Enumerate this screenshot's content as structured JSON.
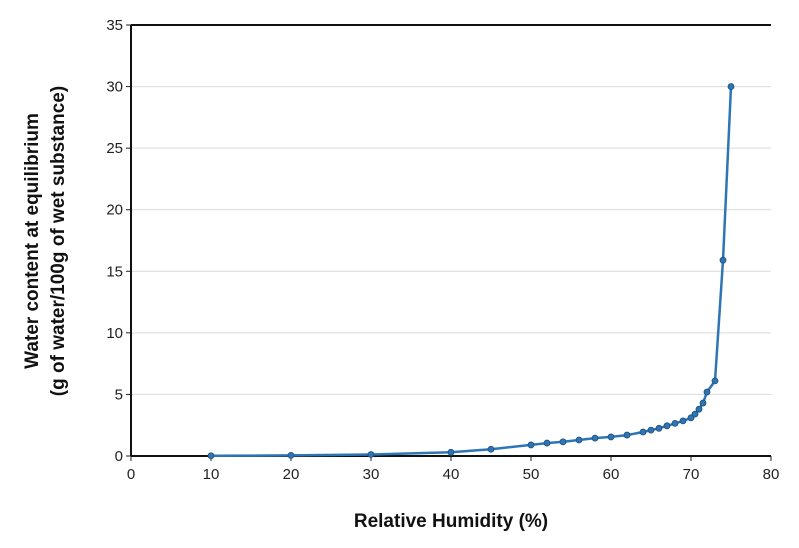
{
  "chart_data": {
    "type": "line",
    "title": "",
    "xlabel": "Relative Humidity (%)",
    "ylabel_line1": "Water content at equilibrium",
    "ylabel_line2": "(g of water/100g of wet substance)",
    "xlim": [
      0,
      80
    ],
    "ylim": [
      0,
      35
    ],
    "xticks": [
      0,
      10,
      20,
      30,
      40,
      50,
      60,
      70,
      80
    ],
    "yticks": [
      0,
      5,
      10,
      15,
      20,
      25,
      30,
      35
    ],
    "grid": {
      "horizontal": true,
      "vertical": false
    },
    "legend": null,
    "series": [
      {
        "name": "Water content",
        "color": "#2e75b6",
        "x": [
          10,
          20,
          30,
          40,
          45,
          50,
          52,
          54,
          56,
          58,
          60,
          62,
          64,
          65,
          66,
          67,
          68,
          69,
          70,
          70.5,
          71,
          71.5,
          72,
          73,
          74,
          75
        ],
        "y": [
          0.02,
          0.05,
          0.12,
          0.3,
          0.55,
          0.9,
          1.05,
          1.15,
          1.3,
          1.45,
          1.55,
          1.7,
          1.95,
          2.1,
          2.25,
          2.45,
          2.65,
          2.85,
          3.1,
          3.4,
          3.8,
          4.3,
          5.2,
          6.1,
          15.9,
          30.0
        ]
      }
    ]
  }
}
